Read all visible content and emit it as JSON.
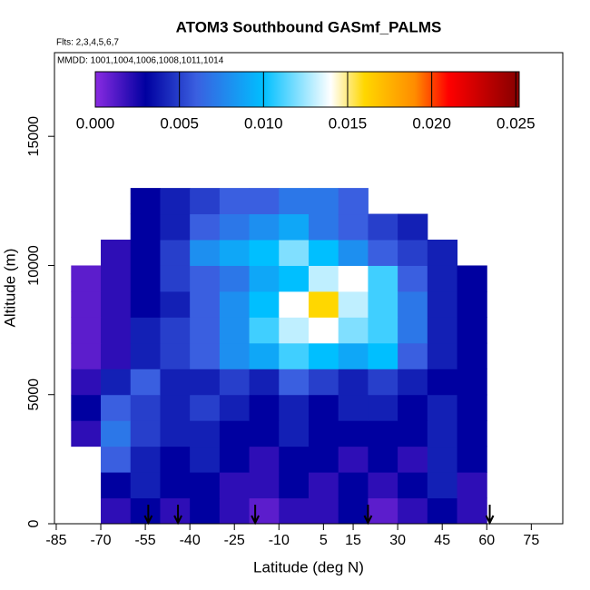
{
  "chart_data": {
    "type": "heatmap",
    "title": "ATOM3 Southbound GASmf_PALMS",
    "annotations": [
      "Flts: 2,3,4,5,6,7",
      "MMDD: 1001,1004,1006,1008,1011,1014"
    ],
    "x_label": "Latitude (deg N)",
    "y_label": "Altitude (m)",
    "xlim": [
      -85.6,
      85.6
    ],
    "ylim": [
      0,
      18240
    ],
    "xticks": [
      -85,
      -70,
      -55,
      -40,
      -25,
      -10,
      5,
      15,
      30,
      45,
      60,
      75
    ],
    "yticks": [
      0,
      5000,
      10000,
      15000
    ],
    "x": [
      -75,
      -65,
      -55,
      -45,
      -35,
      -25,
      -15,
      -5,
      5,
      15,
      25,
      35,
      45,
      55
    ],
    "y": [
      500,
      1500,
      2500,
      3500,
      4500,
      5500,
      6500,
      7500,
      8500,
      9500,
      10500,
      11500,
      12500
    ],
    "z": [
      [
        null,
        0.002,
        0.003,
        0.002,
        0.003,
        0.002,
        0.001,
        0.002,
        0.002,
        0.003,
        0.001,
        0.002,
        0.003,
        0.002
      ],
      [
        null,
        0.003,
        0.004,
        0.003,
        0.003,
        0.002,
        0.002,
        0.003,
        0.002,
        0.003,
        0.002,
        0.003,
        0.004,
        0.002
      ],
      [
        null,
        0.006,
        0.004,
        0.003,
        0.004,
        0.003,
        0.002,
        0.003,
        0.003,
        0.002,
        0.003,
        0.002,
        0.004,
        0.003
      ],
      [
        0.002,
        0.007,
        0.005,
        0.004,
        0.004,
        0.003,
        0.003,
        0.004,
        0.003,
        0.003,
        0.003,
        0.003,
        0.004,
        0.003
      ],
      [
        0.003,
        0.006,
        0.005,
        0.004,
        0.005,
        0.004,
        0.003,
        0.004,
        0.003,
        0.004,
        0.004,
        0.003,
        0.004,
        0.003
      ],
      [
        0.002,
        0.004,
        0.006,
        0.004,
        0.004,
        0.005,
        0.004,
        0.006,
        0.005,
        0.004,
        0.005,
        0.004,
        0.003,
        0.003
      ],
      [
        0.001,
        0.002,
        0.004,
        0.005,
        0.006,
        0.008,
        0.009,
        0.011,
        0.01,
        0.009,
        0.01,
        0.006,
        0.004,
        0.003
      ],
      [
        0.001,
        0.002,
        0.004,
        0.005,
        0.006,
        0.008,
        0.011,
        0.013,
        0.014,
        0.012,
        0.011,
        0.007,
        0.004,
        0.003
      ],
      [
        0.001,
        0.002,
        0.003,
        0.004,
        0.006,
        0.008,
        0.01,
        0.014,
        0.016,
        0.013,
        0.011,
        0.007,
        0.004,
        0.003
      ],
      [
        0.001,
        0.002,
        0.003,
        0.005,
        0.006,
        0.007,
        0.009,
        0.01,
        0.013,
        0.014,
        0.011,
        0.006,
        0.004,
        0.003
      ],
      [
        null,
        0.002,
        0.003,
        0.005,
        0.008,
        0.009,
        0.01,
        0.012,
        0.01,
        0.008,
        0.006,
        0.005,
        0.004,
        null
      ],
      [
        null,
        null,
        0.003,
        0.004,
        0.006,
        0.007,
        0.008,
        0.009,
        0.007,
        0.006,
        0.005,
        0.004,
        null,
        null
      ],
      [
        null,
        null,
        0.003,
        0.004,
        0.005,
        0.006,
        0.006,
        0.007,
        0.007,
        0.006,
        null,
        null,
        null,
        null
      ]
    ],
    "cell_width": 10,
    "cell_height": 1000,
    "colorscale": [
      {
        "value": 0,
        "color": "#8a2be2"
      },
      {
        "value": 0.003,
        "color": "#0000a0"
      },
      {
        "value": 0.006,
        "color": "#3a5fe0"
      },
      {
        "value": 0.01,
        "color": "#00bfff"
      },
      {
        "value": 0.014,
        "color": "#ffffff"
      },
      {
        "value": 0.016,
        "color": "#ffd700"
      },
      {
        "value": 0.019,
        "color": "#ff8c00"
      },
      {
        "value": 0.021,
        "color": "#ff0000"
      },
      {
        "value": 0.025,
        "color": "#8b0000"
      }
    ],
    "clim": [
      0,
      0.0252
    ],
    "cticks": [
      {
        "value": 0,
        "label": "0.000"
      },
      {
        "value": 0.005,
        "label": "0.005"
      },
      {
        "value": 0.01,
        "label": "0.010"
      },
      {
        "value": 0.015,
        "label": "0.015"
      },
      {
        "value": 0.02,
        "label": "0.020"
      },
      {
        "value": 0.025,
        "label": "0.025"
      }
    ],
    "arrows_x": [
      -54,
      -44,
      -18,
      20,
      61
    ]
  }
}
